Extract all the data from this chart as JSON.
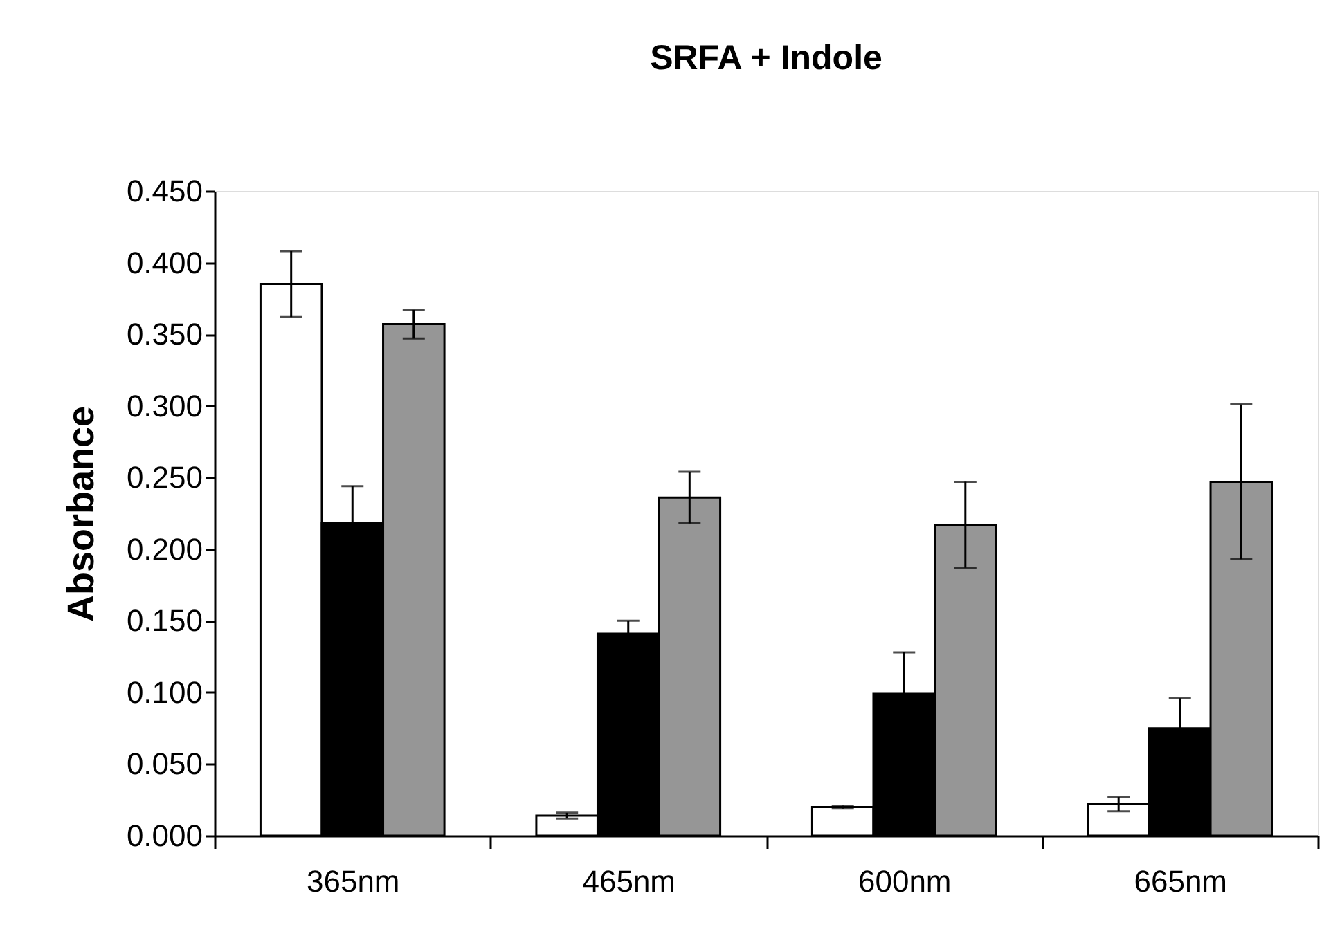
{
  "chart_data": {
    "type": "bar",
    "title": "SRFA + Indole",
    "ylabel": "Absorbance",
    "categories": [
      "365nm",
      "465nm",
      "600nm",
      "665nm"
    ],
    "series": [
      {
        "color": "#ffffff",
        "values": [
          0.385,
          0.014,
          0.02,
          0.022
        ],
        "errors": [
          0.023,
          0.002,
          0.001,
          0.005
        ]
      },
      {
        "color": "#000000",
        "values": [
          0.218,
          0.141,
          0.099,
          0.075
        ],
        "errors": [
          0.026,
          0.009,
          0.029,
          0.021
        ]
      },
      {
        "color": "#969696",
        "values": [
          0.357,
          0.236,
          0.217,
          0.247
        ],
        "errors": [
          0.01,
          0.018,
          0.03,
          0.054
        ]
      }
    ],
    "ylim": [
      0,
      0.45
    ],
    "yticks": [
      {
        "value": 0,
        "label": "0.000"
      },
      {
        "value": 0.05,
        "label": "0.050"
      },
      {
        "value": 0.1,
        "label": "0.100"
      },
      {
        "value": 0.15,
        "label": "0.150"
      },
      {
        "value": 0.2,
        "label": "0.200"
      },
      {
        "value": 0.25,
        "label": "0.250"
      },
      {
        "value": 0.3,
        "label": "0.300"
      },
      {
        "value": 0.35,
        "label": "0.350"
      },
      {
        "value": 0.4,
        "label": "0.400"
      },
      {
        "value": 0.45,
        "label": "0.450"
      }
    ],
    "grid": false
  }
}
